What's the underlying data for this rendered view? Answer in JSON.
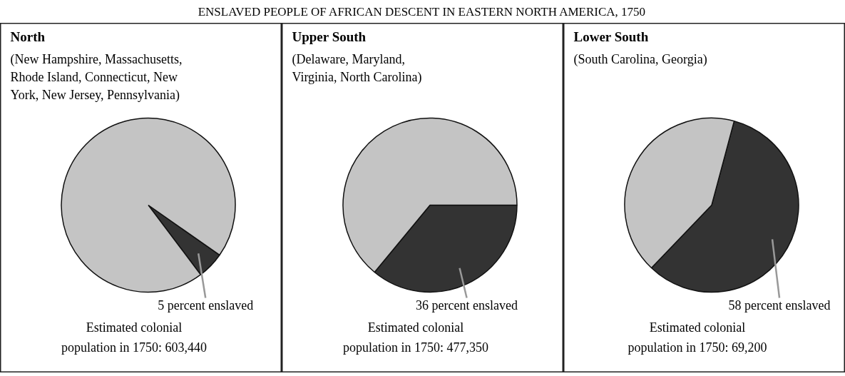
{
  "chart_data": [
    {
      "type": "other",
      "title": "ENSLAVED PEOPLE OF AFRICAN DESCENT IN EASTERN NORTH AMERICA, 1750"
    },
    {
      "type": "pie",
      "title": "North",
      "subtitle": "(New Hampshire, Massachusetts,\nRhode Island, Connecticut, New\nYork, New Jersey, Pennsylvania)",
      "categories": [
        null,
        null
      ],
      "values": [
        5,
        95
      ],
      "colors": [
        "#333333",
        "#c4c4c4"
      ],
      "value_labels": [
        "5 percent enslaved",
        null
      ],
      "annotations": [
        "Estimated colonial\npopulation in 1750: 603,440"
      ]
    },
    {
      "type": "pie",
      "title": "Upper South",
      "subtitle": "(Delaware, Maryland,\nVirginia, North Carolina)",
      "categories": [
        null,
        null
      ],
      "values": [
        36,
        64
      ],
      "colors": [
        "#333333",
        "#c4c4c4"
      ],
      "value_labels": [
        "36 percent enslaved",
        null
      ],
      "annotations": [
        "Estimated colonial\npopulation in 1750: 477,350"
      ]
    },
    {
      "type": "pie",
      "title": "Lower South",
      "subtitle": "(South Carolina, Georgia)",
      "categories": [
        null,
        null
      ],
      "values": [
        58,
        42
      ],
      "colors": [
        "#333333",
        "#c4c4c4"
      ],
      "value_labels": [
        "58 percent enslaved",
        null
      ],
      "annotations": [
        "Estimated colonial\npopulation in 1750: 69,200"
      ]
    }
  ]
}
